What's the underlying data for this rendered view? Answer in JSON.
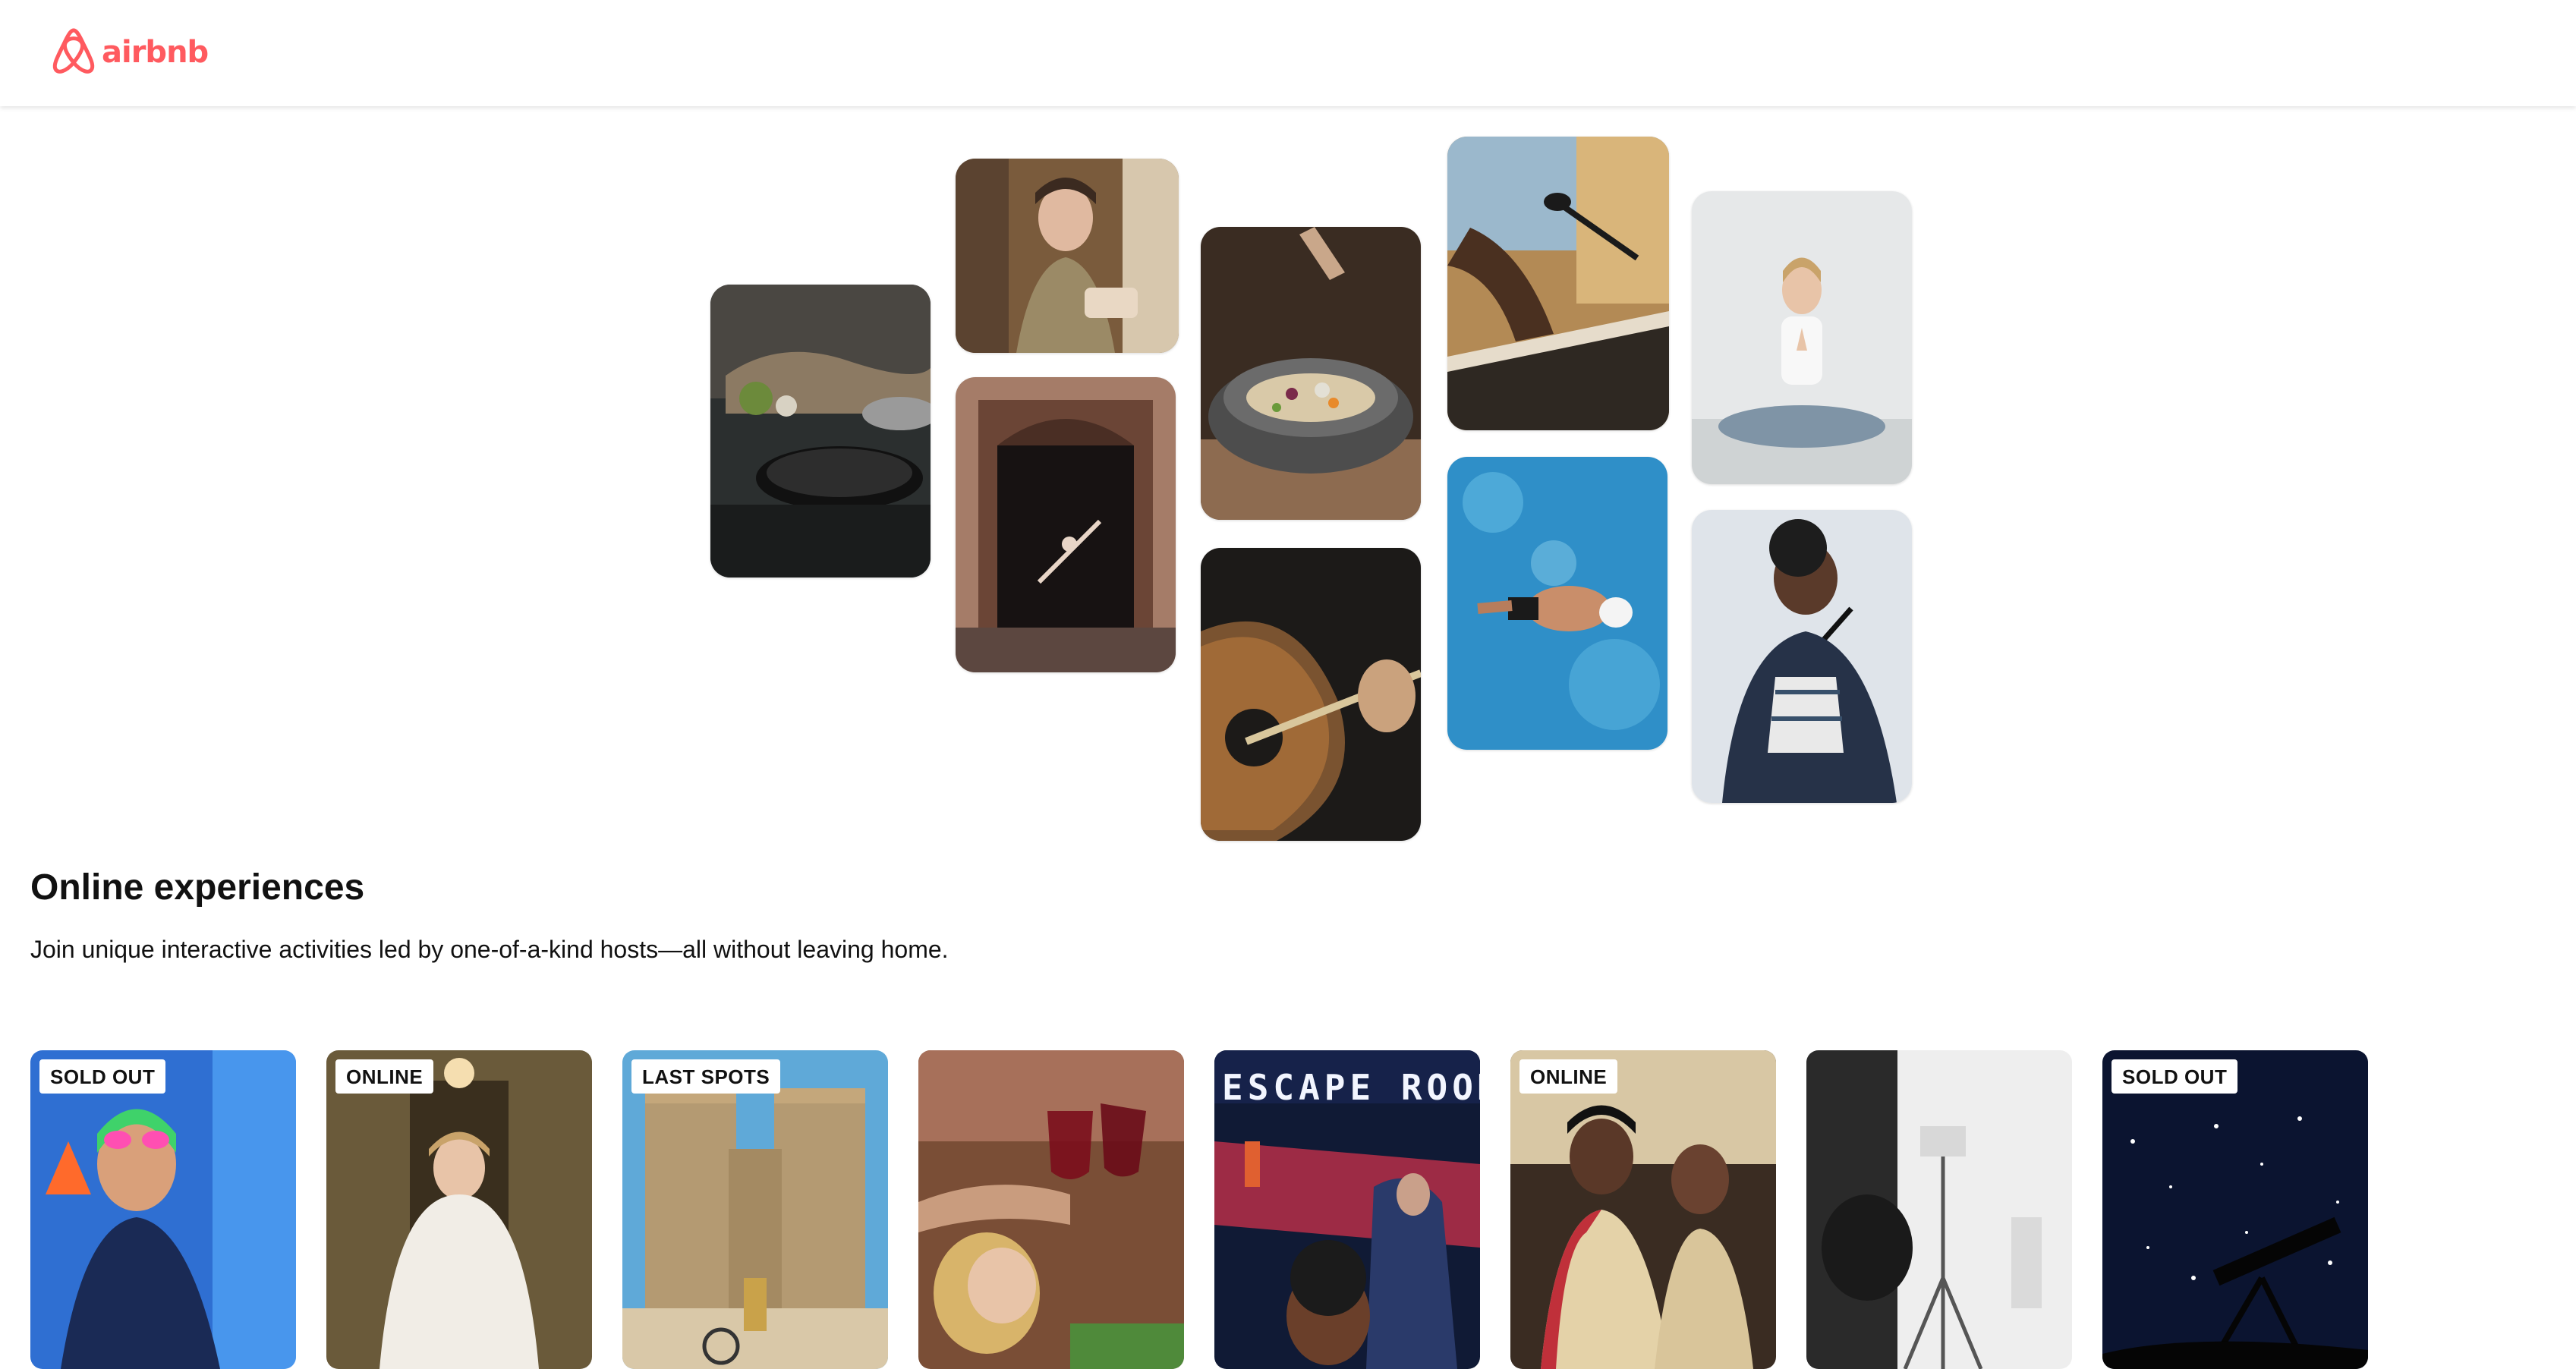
{
  "header": {
    "logo_text": "airbnb",
    "logo_icon": "airbnb-belo-icon",
    "brand_color": "#ff5a5f"
  },
  "hero": {
    "tiles": [
      {
        "name": "cooking-pans",
        "colors": [
          "#2b2f2f",
          "#6e6a63"
        ]
      },
      {
        "name": "chef-woman",
        "colors": [
          "#8a6a4a",
          "#c9a27a"
        ]
      },
      {
        "name": "dancer-doorway",
        "colors": [
          "#4a2e24",
          "#a57c68"
        ]
      },
      {
        "name": "food-bowl",
        "colors": [
          "#3a2c22",
          "#8d6b50"
        ]
      },
      {
        "name": "guitar",
        "colors": [
          "#1c1a18",
          "#7a5330"
        ]
      },
      {
        "name": "keyboard-mic",
        "colors": [
          "#b38a55",
          "#e0c08a"
        ]
      },
      {
        "name": "swimmer",
        "colors": [
          "#2f8fc8",
          "#6cc3e8"
        ]
      },
      {
        "name": "yoga-woman",
        "colors": [
          "#cfd3d4",
          "#f2f2f2"
        ]
      },
      {
        "name": "singer",
        "colors": [
          "#5a6775",
          "#dfe4ea"
        ]
      }
    ]
  },
  "main": {
    "title": "Online experiences",
    "subtitle": "Join unique interactive activities led by one-of-a-kind hosts—all without leaving home.",
    "cards": [
      {
        "name": "swimmer-portrait",
        "badge": "SOLD OUT",
        "colors": [
          "#2f6fd2",
          "#5ab0ff"
        ]
      },
      {
        "name": "bride-portrait",
        "badge": "ONLINE",
        "colors": [
          "#6a5a3a",
          "#c6a978"
        ]
      },
      {
        "name": "city-towers",
        "badge": "LAST SPOTS",
        "colors": [
          "#5fa9d8",
          "#c4a77b"
        ]
      },
      {
        "name": "wine-toast",
        "badge": "",
        "colors": [
          "#7a4e36",
          "#c5ad92"
        ]
      },
      {
        "name": "escape-room-poster",
        "badge": "",
        "colors": [
          "#101a35",
          "#c0304a"
        ]
      },
      {
        "name": "cooking-class",
        "badge": "ONLINE",
        "colors": [
          "#3a2c22",
          "#d8c7a4"
        ]
      },
      {
        "name": "photo-studio",
        "badge": "",
        "colors": [
          "#2a2a2a",
          "#eeeeee"
        ]
      },
      {
        "name": "stargazing-telescope",
        "badge": "SOLD OUT",
        "colors": [
          "#0b1430",
          "#33477a"
        ]
      }
    ],
    "escape_room_text": "ESCAPE ROOM"
  }
}
